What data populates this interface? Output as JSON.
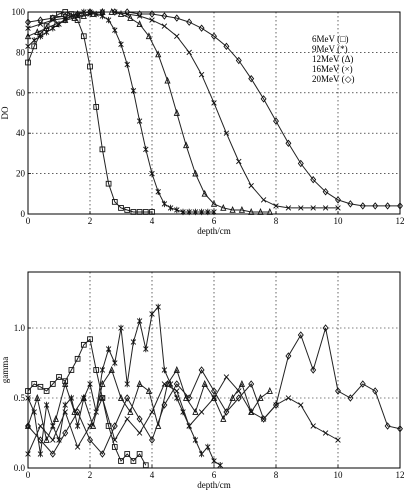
{
  "chart_data": [
    {
      "type": "line",
      "xlabel": "depth/cm",
      "ylabel": "DO",
      "xlim": [
        0,
        12
      ],
      "ylim": [
        0,
        100
      ],
      "xticks": [
        "0",
        "2",
        "4",
        "6",
        "8",
        "10",
        "12"
      ],
      "yticks": [
        "0",
        "20",
        "40",
        "60",
        "80",
        "100"
      ],
      "grid": true,
      "legend_position": "top-right",
      "series": [
        {
          "name": "6MeV (□)",
          "marker": "square",
          "x": [
            0,
            0.2,
            0.4,
            0.6,
            0.8,
            1.0,
            1.2,
            1.4,
            1.6,
            1.8,
            2.0,
            2.2,
            2.4,
            2.6,
            2.8,
            3.0,
            3.2,
            3.4,
            3.6,
            3.8,
            4.0
          ],
          "y": [
            75,
            83,
            89,
            93,
            97,
            99,
            100,
            99,
            96,
            88,
            73,
            53,
            32,
            15,
            6,
            3,
            2,
            1,
            1,
            1,
            1
          ]
        },
        {
          "name": "9MeV (*)",
          "marker": "star",
          "x": [
            0,
            0.2,
            0.4,
            0.6,
            0.8,
            1.0,
            1.2,
            1.4,
            1.6,
            1.8,
            2.0,
            2.2,
            2.4,
            2.6,
            2.8,
            3.0,
            3.2,
            3.4,
            3.6,
            3.8,
            4.0,
            4.2,
            4.4,
            4.6,
            4.8,
            5.0,
            5.2,
            5.4,
            5.6,
            5.8,
            6.0
          ],
          "y": [
            83,
            86,
            88,
            90,
            92,
            94,
            96,
            98,
            99,
            100,
            100,
            99,
            98,
            96,
            91,
            84,
            74,
            61,
            46,
            32,
            20,
            11,
            5,
            3,
            2,
            1,
            1,
            1,
            1,
            1,
            1
          ]
        },
        {
          "name": "12MeV (Δ)",
          "marker": "triangle",
          "x": [
            0,
            0.3,
            0.6,
            0.9,
            1.2,
            1.5,
            1.8,
            2.1,
            2.4,
            2.7,
            3.0,
            3.3,
            3.6,
            3.9,
            4.2,
            4.5,
            4.8,
            5.1,
            5.4,
            5.7,
            6.0,
            6.3,
            6.6,
            6.9,
            7.2,
            7.5,
            7.8
          ],
          "y": [
            88,
            90,
            92,
            94,
            96,
            97,
            98,
            99,
            100,
            100,
            99,
            97,
            94,
            88,
            79,
            66,
            50,
            34,
            20,
            10,
            5,
            3,
            2,
            2,
            1,
            1,
            1
          ]
        },
        {
          "name": "16MeV (×)",
          "marker": "x",
          "x": [
            0,
            0.4,
            0.8,
            1.2,
            1.6,
            2.0,
            2.4,
            2.8,
            3.2,
            3.6,
            4.0,
            4.4,
            4.8,
            5.2,
            5.6,
            6.0,
            6.4,
            6.8,
            7.2,
            7.6,
            8.0,
            8.4,
            8.8,
            9.2,
            9.6,
            10.0
          ],
          "y": [
            92,
            94,
            96,
            97,
            98,
            99,
            100,
            100,
            99,
            98,
            96,
            93,
            88,
            80,
            69,
            55,
            40,
            26,
            14,
            7,
            4,
            3,
            3,
            3,
            3,
            3
          ]
        },
        {
          "name": "20MeV (◇)",
          "marker": "diamond",
          "x": [
            0,
            0.4,
            0.8,
            1.2,
            1.6,
            2.0,
            2.4,
            2.8,
            3.2,
            3.6,
            4.0,
            4.4,
            4.8,
            5.2,
            5.6,
            6.0,
            6.4,
            6.8,
            7.2,
            7.6,
            8.0,
            8.4,
            8.8,
            9.2,
            9.6,
            10.0,
            10.4,
            10.8,
            11.2,
            11.6,
            12.0
          ],
          "y": [
            95,
            96,
            97,
            98,
            99,
            100,
            100,
            100,
            100,
            99,
            99,
            98,
            97,
            95,
            92,
            88,
            83,
            76,
            67,
            57,
            46,
            35,
            25,
            17,
            11,
            7,
            5,
            4,
            4,
            4,
            4
          ]
        }
      ]
    },
    {
      "type": "line",
      "xlabel": "depth/cm",
      "ylabel": "gamma",
      "xlim": [
        0,
        12
      ],
      "ylim": [
        0,
        1.4
      ],
      "xticks": [
        "0",
        "2",
        "4",
        "6",
        "8",
        "10",
        "12"
      ],
      "yticks": [
        "0.0",
        "0.5",
        "1.0"
      ],
      "grid": true,
      "series": [
        {
          "marker": "square",
          "x": [
            0,
            0.2,
            0.4,
            0.6,
            0.8,
            1.0,
            1.2,
            1.4,
            1.6,
            1.8,
            2.0,
            2.2,
            2.4,
            2.6,
            2.8,
            3.0,
            3.2,
            3.4,
            3.6,
            3.8
          ],
          "y": [
            0.55,
            0.6,
            0.58,
            0.55,
            0.6,
            0.65,
            0.62,
            0.7,
            0.78,
            0.88,
            0.92,
            0.7,
            0.5,
            0.3,
            0.15,
            0.05,
            0.1,
            0.05,
            0.1,
            0.02
          ]
        },
        {
          "marker": "star",
          "x": [
            0,
            0.2,
            0.4,
            0.6,
            0.8,
            1.0,
            1.2,
            1.4,
            1.6,
            1.8,
            2.0,
            2.2,
            2.4,
            2.6,
            2.8,
            3.0,
            3.2,
            3.4,
            3.6,
            3.8,
            4.0,
            4.2,
            4.4,
            4.6,
            4.8,
            5.0,
            5.2,
            5.4,
            5.6,
            5.8,
            6.0,
            6.2
          ],
          "y": [
            0.5,
            0.4,
            0.1,
            0.45,
            0.3,
            0.2,
            0.45,
            0.5,
            0.3,
            0.5,
            0.6,
            0.4,
            0.7,
            0.85,
            0.75,
            1.0,
            0.6,
            0.9,
            1.05,
            0.85,
            1.1,
            1.15,
            0.7,
            0.6,
            0.5,
            0.4,
            0.3,
            0.2,
            0.1,
            0.15,
            0.05,
            0.02
          ]
        },
        {
          "marker": "triangle",
          "x": [
            0,
            0.3,
            0.6,
            0.9,
            1.2,
            1.5,
            1.8,
            2.1,
            2.4,
            2.7,
            3.0,
            3.3,
            3.6,
            3.9,
            4.2,
            4.5,
            4.8,
            5.1,
            5.4,
            5.7,
            6.0,
            6.3,
            6.6,
            6.9,
            7.2,
            7.5,
            7.8
          ],
          "y": [
            0.3,
            0.5,
            0.2,
            0.35,
            0.6,
            0.4,
            0.5,
            0.3,
            0.6,
            0.7,
            0.5,
            0.4,
            0.6,
            0.55,
            0.3,
            0.6,
            0.7,
            0.5,
            0.4,
            0.6,
            0.5,
            0.35,
            0.5,
            0.6,
            0.4,
            0.5,
            0.55
          ]
        },
        {
          "marker": "x",
          "x": [
            0,
            0.4,
            0.8,
            1.2,
            1.6,
            2.0,
            2.4,
            2.8,
            3.2,
            3.6,
            4.0,
            4.4,
            4.8,
            5.2,
            5.6,
            6.0,
            6.4,
            6.8,
            7.2,
            7.6,
            8.0,
            8.4,
            8.8,
            9.2,
            9.6,
            10.0
          ],
          "y": [
            0.1,
            0.3,
            0.2,
            0.4,
            0.15,
            0.3,
            0.5,
            0.2,
            0.35,
            0.25,
            0.4,
            0.6,
            0.55,
            0.3,
            0.4,
            0.5,
            0.65,
            0.55,
            0.4,
            0.35,
            0.45,
            0.5,
            0.45,
            0.3,
            0.25,
            0.2
          ]
        },
        {
          "marker": "diamond",
          "x": [
            0,
            0.4,
            0.8,
            1.2,
            1.6,
            2.0,
            2.4,
            2.8,
            3.2,
            3.6,
            4.0,
            4.4,
            4.8,
            5.2,
            5.6,
            6.0,
            6.4,
            6.8,
            7.2,
            7.6,
            8.0,
            8.4,
            8.8,
            9.2,
            9.6,
            10.0,
            10.4,
            10.8,
            11.2,
            11.6,
            12.0
          ],
          "y": [
            0.3,
            0.2,
            0.1,
            0.25,
            0.4,
            0.2,
            0.1,
            0.3,
            0.5,
            0.35,
            0.2,
            0.45,
            0.6,
            0.5,
            0.7,
            0.55,
            0.4,
            0.5,
            0.6,
            0.35,
            0.45,
            0.8,
            0.95,
            0.7,
            1.0,
            0.55,
            0.5,
            0.6,
            0.55,
            0.3,
            0.28
          ]
        }
      ]
    }
  ]
}
